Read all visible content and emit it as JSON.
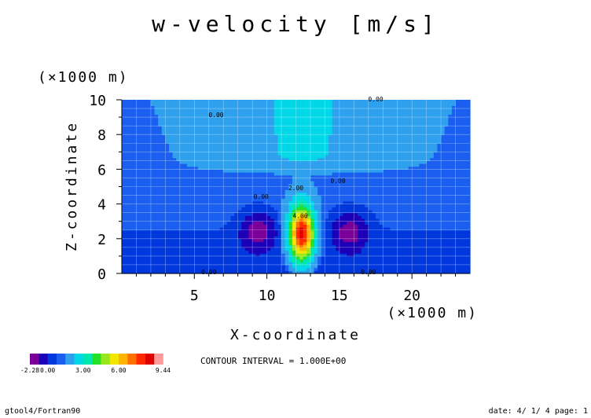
{
  "chart_data": {
    "type": "heatmap",
    "title": "w-velocity [m/s]",
    "xlabel": "X-coordinate",
    "ylabel": "Z-coordinate",
    "x_unit": "(×1000 m)",
    "y_unit": "(×1000 m)",
    "xlim": [
      0,
      24
    ],
    "ylim": [
      0,
      10
    ],
    "x_ticks": [
      5,
      10,
      15,
      20
    ],
    "y_ticks": [
      0,
      2,
      4,
      6,
      8,
      10
    ],
    "x_tick_labels": [
      "5",
      "10",
      "15",
      "20"
    ],
    "y_tick_labels": [
      "0",
      "2",
      "4",
      "6",
      "8",
      "10"
    ],
    "grid": true,
    "contour_interval_text": "CONTOUR INTERVAL = 1.000E+00",
    "contour_labels": [
      {
        "text": "2.00",
        "x": 12.0,
        "y": 4.8
      },
      {
        "text": "4.00",
        "x": 12.3,
        "y": 3.2
      },
      {
        "text": "0.00",
        "x": 6.0,
        "y": -0.05
      },
      {
        "text": "0.00",
        "x": 17.0,
        "y": -0.05
      },
      {
        "text": "0.00",
        "x": 6.5,
        "y": 9.0
      },
      {
        "text": "0.00",
        "x": 17.5,
        "y": 9.9
      },
      {
        "text": "0.00",
        "x": 9.6,
        "y": 4.3
      },
      {
        "text": "0.00",
        "x": 14.9,
        "y": 5.2
      }
    ],
    "colorbar": {
      "colors": [
        "#7a0099",
        "#1c00b8",
        "#0038dd",
        "#1a5ff0",
        "#2ea0ee",
        "#00d8e8",
        "#00e6b0",
        "#26e028",
        "#9ae61c",
        "#f0e600",
        "#ffb400",
        "#ff7000",
        "#ff2a00",
        "#e00000",
        "#ff9a9a"
      ],
      "tick_labels": [
        "-2.28",
        "0.00",
        "3.00",
        "6.00",
        "9.44"
      ]
    }
  },
  "footer": {
    "left": "gtool4/Fortran90",
    "right": "date: 4/ 1/ 4 page: 1"
  }
}
